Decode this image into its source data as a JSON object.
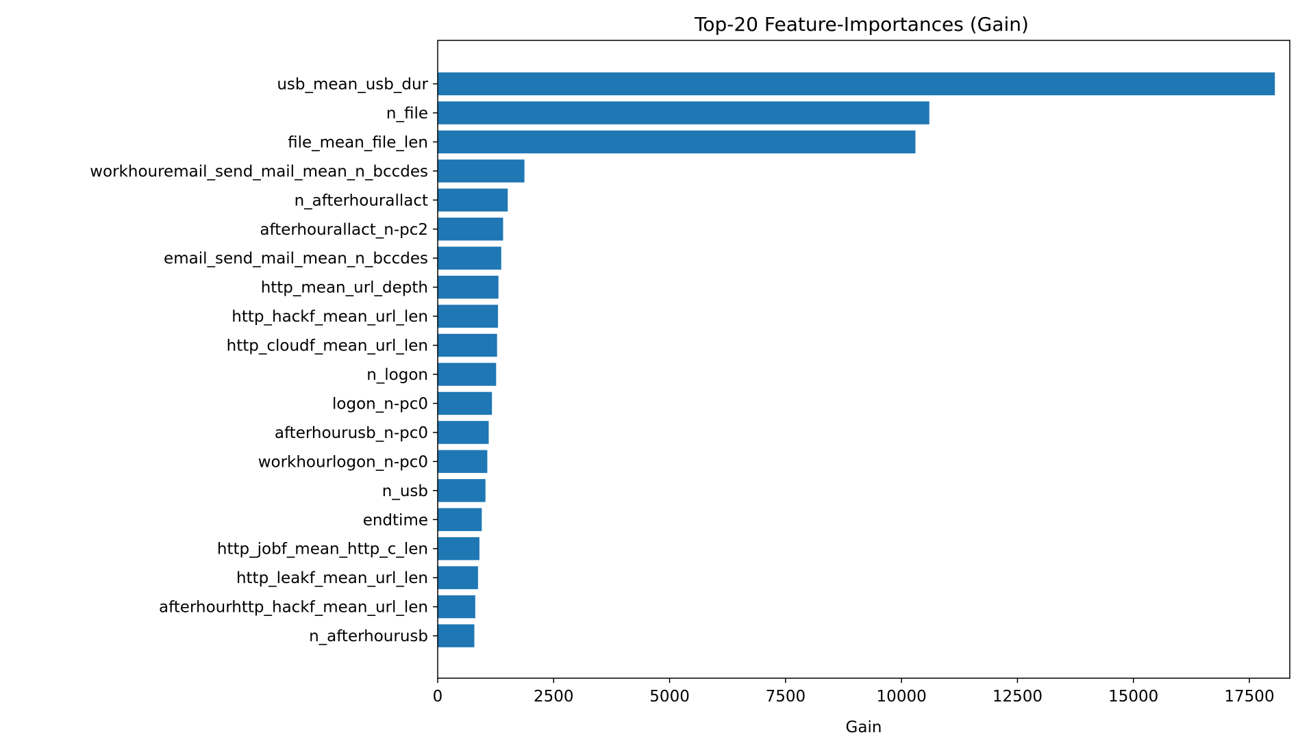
{
  "chart_data": {
    "type": "bar",
    "orientation": "horizontal",
    "title": "Top-20 Feature-Importances (Gain)",
    "xlabel": "Gain",
    "ylabel": "",
    "xlim": [
      0,
      18900
    ],
    "xticks": [
      0,
      2500,
      5000,
      7500,
      10000,
      12500,
      15000,
      17500
    ],
    "grid": false,
    "legend": "none",
    "bar_color": "#1f77b4",
    "categories": [
      "usb_mean_usb_dur",
      "n_file",
      "file_mean_file_len",
      "workhouremail_send_mail_mean_n_bccdes",
      "n_afterhourallact",
      "afterhourallact_n-pc2",
      "email_send_mail_mean_n_bccdes",
      "http_mean_url_depth",
      "http_hackf_mean_url_len",
      "http_cloudf_mean_url_len",
      "n_logon",
      "logon_n-pc0",
      "afterhourusb_n-pc0",
      "workhourlogon_n-pc0",
      "n_usb",
      "endtime",
      "http_jobf_mean_http_c_len",
      "http_leakf_mean_url_len",
      "afterhourhttp_hackf_mean_url_len",
      "n_afterhourusb"
    ],
    "values": [
      18050,
      10600,
      10300,
      1870,
      1510,
      1410,
      1370,
      1310,
      1300,
      1280,
      1260,
      1170,
      1100,
      1070,
      1030,
      950,
      900,
      870,
      810,
      790
    ]
  }
}
